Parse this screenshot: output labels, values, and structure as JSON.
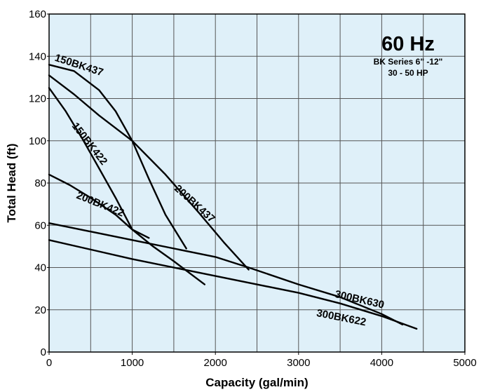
{
  "chart_data": {
    "type": "line",
    "title": "60 Hz",
    "subtitle_lines": [
      "BK Series 6\" -12\"",
      "30 - 50 HP"
    ],
    "xlabel": "Capacity (gal/min)",
    "ylabel": "Total Head (ft)",
    "xlim": [
      0,
      5000
    ],
    "ylim": [
      0,
      160
    ],
    "xticks": [
      0,
      1000,
      2000,
      3000,
      4000,
      5000
    ],
    "yticks": [
      0,
      20,
      40,
      60,
      80,
      100,
      120,
      140,
      160
    ],
    "grid": true,
    "background_color": "#dff0f9",
    "grid_color": "#555555",
    "line_color": "#000000",
    "series": [
      {
        "name": "150BK437",
        "x": [
          0,
          300,
          600,
          800,
          1000,
          1200,
          1400,
          1650
        ],
        "y": [
          136,
          133,
          124,
          114,
          100,
          82,
          65,
          49
        ]
      },
      {
        "name": "150BK422",
        "x": [
          0,
          200,
          400,
          600,
          800,
          1000,
          1200
        ],
        "y": [
          125,
          114,
          101,
          87,
          73,
          58,
          54
        ]
      },
      {
        "name": "200BK437",
        "x": [
          0,
          300,
          600,
          1000,
          1400,
          1800,
          2100,
          2400
        ],
        "y": [
          131,
          122,
          112,
          100,
          84,
          66,
          52,
          39
        ]
      },
      {
        "name": "200BK422",
        "x": [
          0,
          250,
          500,
          800,
          1000,
          1250,
          1500,
          1870
        ],
        "y": [
          84,
          79,
          73,
          65,
          58,
          50,
          43,
          32
        ]
      },
      {
        "name": "300BK630",
        "x": [
          0,
          1000,
          2000,
          2400,
          3000,
          3500,
          4000,
          4250
        ],
        "y": [
          61,
          53,
          45,
          40,
          32,
          26,
          18,
          13
        ]
      },
      {
        "name": "300BK622",
        "x": [
          0,
          1000,
          2000,
          3000,
          3500,
          4000,
          4420
        ],
        "y": [
          53,
          44,
          36,
          28,
          23,
          17,
          11
        ]
      }
    ],
    "annotations": [
      {
        "text": "150BK437",
        "x": 60,
        "y": 138,
        "angle": 18
      },
      {
        "text": "150BK422",
        "x": 270,
        "y": 107,
        "angle": 52
      },
      {
        "text": "200BK437",
        "x": 1500,
        "y": 77,
        "angle": 42
      },
      {
        "text": "200BK422",
        "x": 320,
        "y": 73,
        "angle": 22
      },
      {
        "text": "300BK630",
        "x": 3430,
        "y": 26,
        "angle": 13
      },
      {
        "text": "300BK622",
        "x": 3210,
        "y": 17,
        "angle": 11
      }
    ]
  }
}
